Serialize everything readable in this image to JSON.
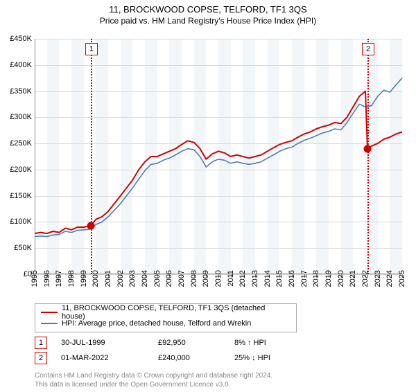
{
  "title": "11, BROCKWOOD COPSE, TELFORD, TF1 3QS",
  "subtitle": "Price paid vs. HM Land Registry's House Price Index (HPI)",
  "chart": {
    "type": "line",
    "x_years": [
      1995,
      1996,
      1997,
      1998,
      1999,
      2000,
      2001,
      2002,
      2003,
      2004,
      2005,
      2006,
      2007,
      2008,
      2009,
      2010,
      2011,
      2012,
      2013,
      2014,
      2015,
      2016,
      2017,
      2018,
      2019,
      2020,
      2021,
      2022,
      2023,
      2024,
      2025
    ],
    "ylim": [
      0,
      450000
    ],
    "yticks": [
      0,
      50000,
      100000,
      150000,
      200000,
      250000,
      300000,
      350000,
      400000,
      450000
    ],
    "ytick_labels": [
      "£0",
      "£50K",
      "£100K",
      "£150K",
      "£200K",
      "£250K",
      "£300K",
      "£350K",
      "£400K",
      "£450K"
    ],
    "background_color": "#ffffff",
    "band_color": "#f2f6f9",
    "grid_color": "#d9d9d9",
    "band_years": [
      1996,
      1998,
      2000,
      2002,
      2004,
      2006,
      2008,
      2010,
      2012,
      2014,
      2016,
      2018,
      2020,
      2022,
      2024
    ],
    "series": [
      {
        "name": "price_paid",
        "color": "#d00000",
        "width": 2,
        "data": [
          [
            1995.0,
            78000
          ],
          [
            1995.5,
            80000
          ],
          [
            1996.0,
            78000
          ],
          [
            1996.5,
            82000
          ],
          [
            1997.0,
            80000
          ],
          [
            1997.5,
            88000
          ],
          [
            1998.0,
            85000
          ],
          [
            1998.5,
            90000
          ],
          [
            1999.0,
            90000
          ],
          [
            1999.58,
            92950
          ],
          [
            2000.0,
            105000
          ],
          [
            2000.5,
            110000
          ],
          [
            2001.0,
            120000
          ],
          [
            2001.5,
            135000
          ],
          [
            2002.0,
            150000
          ],
          [
            2002.5,
            165000
          ],
          [
            2003.0,
            180000
          ],
          [
            2003.5,
            200000
          ],
          [
            2004.0,
            215000
          ],
          [
            2004.5,
            225000
          ],
          [
            2005.0,
            225000
          ],
          [
            2005.5,
            230000
          ],
          [
            2006.0,
            235000
          ],
          [
            2006.5,
            240000
          ],
          [
            2007.0,
            248000
          ],
          [
            2007.5,
            255000
          ],
          [
            2008.0,
            252000
          ],
          [
            2008.5,
            240000
          ],
          [
            2009.0,
            220000
          ],
          [
            2009.5,
            230000
          ],
          [
            2010.0,
            235000
          ],
          [
            2010.5,
            232000
          ],
          [
            2011.0,
            225000
          ],
          [
            2011.5,
            228000
          ],
          [
            2012.0,
            225000
          ],
          [
            2012.5,
            222000
          ],
          [
            2013.0,
            225000
          ],
          [
            2013.5,
            228000
          ],
          [
            2014.0,
            235000
          ],
          [
            2014.5,
            242000
          ],
          [
            2015.0,
            248000
          ],
          [
            2015.5,
            252000
          ],
          [
            2016.0,
            255000
          ],
          [
            2016.5,
            262000
          ],
          [
            2017.0,
            268000
          ],
          [
            2017.5,
            272000
          ],
          [
            2018.0,
            278000
          ],
          [
            2018.5,
            282000
          ],
          [
            2019.0,
            285000
          ],
          [
            2019.5,
            290000
          ],
          [
            2020.0,
            288000
          ],
          [
            2020.5,
            300000
          ],
          [
            2021.0,
            320000
          ],
          [
            2021.5,
            340000
          ],
          [
            2022.0,
            350000
          ],
          [
            2022.17,
            240000
          ],
          [
            2022.5,
            245000
          ],
          [
            2023.0,
            250000
          ],
          [
            2023.5,
            258000
          ],
          [
            2024.0,
            262000
          ],
          [
            2024.5,
            268000
          ],
          [
            2025.0,
            272000
          ]
        ]
      },
      {
        "name": "hpi",
        "color": "#4a7bb8",
        "width": 1.6,
        "data": [
          [
            1995.0,
            72000
          ],
          [
            1995.5,
            73000
          ],
          [
            1996.0,
            72000
          ],
          [
            1996.5,
            75000
          ],
          [
            1997.0,
            76000
          ],
          [
            1997.5,
            82000
          ],
          [
            1998.0,
            80000
          ],
          [
            1998.5,
            84000
          ],
          [
            1999.0,
            85000
          ],
          [
            1999.5,
            86000
          ],
          [
            2000.0,
            95000
          ],
          [
            2000.5,
            100000
          ],
          [
            2001.0,
            110000
          ],
          [
            2001.5,
            122000
          ],
          [
            2002.0,
            135000
          ],
          [
            2002.5,
            150000
          ],
          [
            2003.0,
            165000
          ],
          [
            2003.5,
            182000
          ],
          [
            2004.0,
            198000
          ],
          [
            2004.5,
            210000
          ],
          [
            2005.0,
            212000
          ],
          [
            2005.5,
            218000
          ],
          [
            2006.0,
            222000
          ],
          [
            2006.5,
            228000
          ],
          [
            2007.0,
            235000
          ],
          [
            2007.5,
            240000
          ],
          [
            2008.0,
            238000
          ],
          [
            2008.5,
            225000
          ],
          [
            2009.0,
            205000
          ],
          [
            2009.5,
            215000
          ],
          [
            2010.0,
            220000
          ],
          [
            2010.5,
            218000
          ],
          [
            2011.0,
            212000
          ],
          [
            2011.5,
            215000
          ],
          [
            2012.0,
            212000
          ],
          [
            2012.5,
            210000
          ],
          [
            2013.0,
            212000
          ],
          [
            2013.5,
            215000
          ],
          [
            2014.0,
            222000
          ],
          [
            2014.5,
            228000
          ],
          [
            2015.0,
            235000
          ],
          [
            2015.5,
            240000
          ],
          [
            2016.0,
            243000
          ],
          [
            2016.5,
            250000
          ],
          [
            2017.0,
            256000
          ],
          [
            2017.5,
            260000
          ],
          [
            2018.0,
            265000
          ],
          [
            2018.5,
            270000
          ],
          [
            2019.0,
            273000
          ],
          [
            2019.5,
            278000
          ],
          [
            2020.0,
            276000
          ],
          [
            2020.5,
            290000
          ],
          [
            2021.0,
            308000
          ],
          [
            2021.5,
            325000
          ],
          [
            2022.0,
            320000
          ],
          [
            2022.5,
            322000
          ],
          [
            2023.0,
            340000
          ],
          [
            2023.5,
            352000
          ],
          [
            2024.0,
            348000
          ],
          [
            2024.5,
            362000
          ],
          [
            2025.0,
            375000
          ]
        ]
      }
    ],
    "annotations": [
      {
        "n": "1",
        "year": 1999.58
      },
      {
        "n": "2",
        "year": 2022.17
      }
    ],
    "scatter": [
      {
        "year": 1999.58,
        "value": 92950
      },
      {
        "year": 2022.17,
        "value": 240000
      }
    ]
  },
  "legend": {
    "items": [
      {
        "color": "#d00000",
        "label": "11, BROCKWOOD COPSE, TELFORD, TF1 3QS (detached house)"
      },
      {
        "color": "#4a7bb8",
        "label": "HPI: Average price, detached house, Telford and Wrekin"
      }
    ]
  },
  "transactions": [
    {
      "n": "1",
      "date": "30-JUL-1999",
      "price": "£92,950",
      "diff": "8% ↑ HPI"
    },
    {
      "n": "2",
      "date": "01-MAR-2022",
      "price": "£240,000",
      "diff": "25% ↓ HPI"
    }
  ],
  "footnote_line1": "Contains HM Land Registry data © Crown copyright and database right 2024.",
  "footnote_line2": "This data is licensed under the Open Government Licence v3.0."
}
